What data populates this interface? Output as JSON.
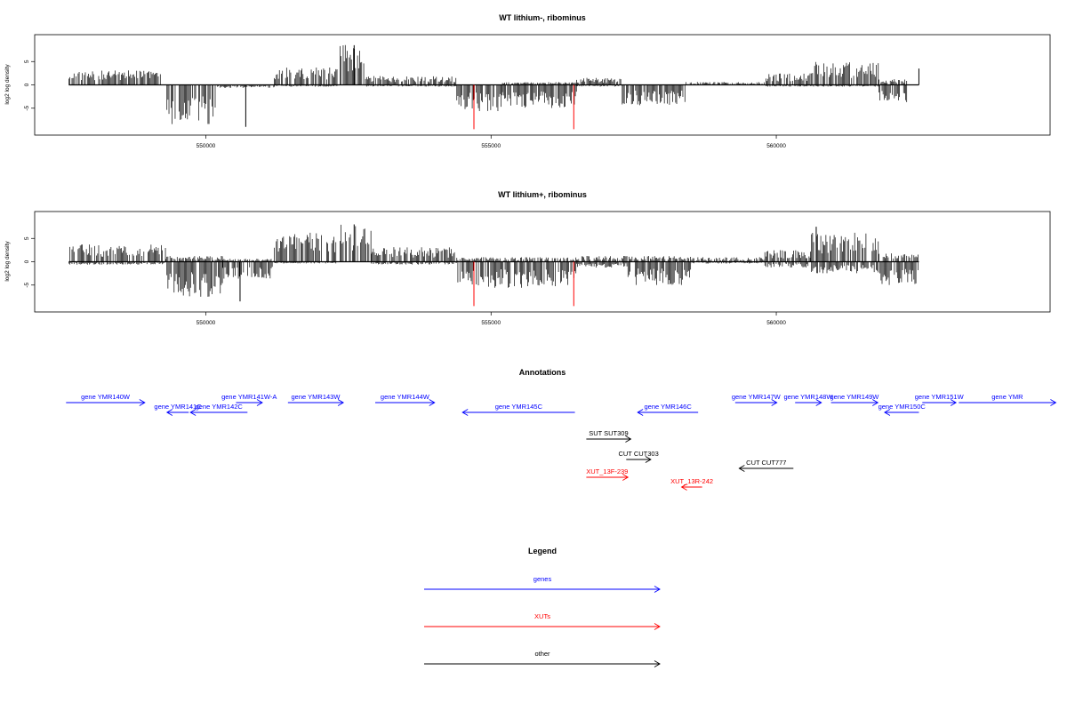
{
  "colors": {
    "genes": "#0000ff",
    "XUTs": "#ff0000",
    "other": "#000000",
    "signal": "#000000",
    "highlight": "#ff0000"
  },
  "chart_data": [
    {
      "type": "bar",
      "title": "WT lithium-, ribominus",
      "ylabel": "log2 log density",
      "xlim": [
        547000,
        564800
      ],
      "ylim": [
        -10,
        10
      ],
      "xticks": [
        550000,
        555000,
        560000
      ],
      "xtick_labels": [
        "550000",
        "555000",
        "560000"
      ],
      "yticks": [
        -5,
        0,
        5
      ],
      "ytick_labels": [
        "-5",
        "0",
        "5"
      ],
      "signal_range": [
        547600,
        562500
      ],
      "segments": [
        {
          "from": 547600,
          "to": 548500,
          "plus": 2.5,
          "minus": 0
        },
        {
          "from": 548500,
          "to": 549300,
          "plus": 2.5,
          "minus": 0
        },
        {
          "from": 549300,
          "to": 550200,
          "plus": 0,
          "minus": -7
        },
        {
          "from": 550200,
          "to": 551200,
          "plus": 0,
          "minus": -0.5
        },
        {
          "from": 551200,
          "to": 552300,
          "plus": 3,
          "minus": -0.3
        },
        {
          "from": 552300,
          "to": 552800,
          "plus": 7,
          "minus": 0
        },
        {
          "from": 552800,
          "to": 554400,
          "plus": 1.5,
          "minus": -0.3
        },
        {
          "from": 554400,
          "to": 555200,
          "plus": 0,
          "minus": -4.5
        },
        {
          "from": 555200,
          "to": 556500,
          "plus": 0.5,
          "minus": -4
        },
        {
          "from": 556500,
          "to": 557300,
          "plus": 1.2,
          "minus": -0.3
        },
        {
          "from": 557300,
          "to": 558400,
          "plus": 0,
          "minus": -3.5
        },
        {
          "from": 558400,
          "to": 559800,
          "plus": 0.5,
          "minus": 0
        },
        {
          "from": 559800,
          "to": 560600,
          "plus": 2,
          "minus": -0.3
        },
        {
          "from": 560600,
          "to": 561800,
          "plus": 4,
          "minus": -0.3
        },
        {
          "from": 561800,
          "to": 562300,
          "plus": 1,
          "minus": -3
        }
      ],
      "spikes": [
        {
          "x": 554700,
          "y": -9.5,
          "color": "highlight"
        },
        {
          "x": 556450,
          "y": -9.5,
          "color": "highlight"
        },
        {
          "x": 550700,
          "y": -9.0,
          "color": "signal"
        },
        {
          "x": 552600,
          "y": 8.5,
          "color": "signal"
        },
        {
          "x": 562500,
          "y": 3.5,
          "color": "signal"
        }
      ]
    },
    {
      "type": "bar",
      "title": "WT lithium+, ribominus",
      "ylabel": "log2 log density",
      "xlim": [
        547000,
        564800
      ],
      "ylim": [
        -10,
        10
      ],
      "xticks": [
        550000,
        555000,
        560000
      ],
      "xtick_labels": [
        "550000",
        "555000",
        "560000"
      ],
      "yticks": [
        -5,
        0,
        5
      ],
      "ytick_labels": [
        "-5",
        "0",
        "5"
      ],
      "signal_range": [
        547600,
        562500
      ],
      "segments": [
        {
          "from": 547600,
          "to": 549300,
          "plus": 3,
          "minus": -0.5
        },
        {
          "from": 549300,
          "to": 550300,
          "plus": 1,
          "minus": -6
        },
        {
          "from": 550300,
          "to": 551200,
          "plus": 0.5,
          "minus": -3
        },
        {
          "from": 551200,
          "to": 552300,
          "plus": 5,
          "minus": -0.3
        },
        {
          "from": 552300,
          "to": 552900,
          "plus": 6.5,
          "minus": 0
        },
        {
          "from": 552900,
          "to": 554400,
          "plus": 2.5,
          "minus": -0.5
        },
        {
          "from": 554400,
          "to": 556500,
          "plus": 0.8,
          "minus": -4.5
        },
        {
          "from": 556500,
          "to": 557400,
          "plus": 1,
          "minus": -1
        },
        {
          "from": 557400,
          "to": 558500,
          "plus": 1,
          "minus": -4
        },
        {
          "from": 558500,
          "to": 559800,
          "plus": 0.8,
          "minus": -0.3
        },
        {
          "from": 559800,
          "to": 560600,
          "plus": 2,
          "minus": -1
        },
        {
          "from": 560600,
          "to": 561800,
          "plus": 5,
          "minus": -2
        },
        {
          "from": 561800,
          "to": 562500,
          "plus": 1.5,
          "minus": -4
        }
      ],
      "spikes": [
        {
          "x": 554700,
          "y": -9.5,
          "color": "highlight"
        },
        {
          "x": 556450,
          "y": -9.5,
          "color": "highlight"
        },
        {
          "x": 550600,
          "y": -8.5,
          "color": "signal"
        },
        {
          "x": 552600,
          "y": 8.0,
          "color": "signal"
        },
        {
          "x": 560700,
          "y": 7.5,
          "color": "signal"
        }
      ]
    }
  ],
  "annotations": {
    "title": "Annotations",
    "features": [
      {
        "label": "gene YMR140W",
        "start": 547550,
        "end": 548930,
        "row": 0,
        "strand": "+",
        "type": "genes"
      },
      {
        "label": "gene YMR141C",
        "start": 549320,
        "end": 549700,
        "row": 1,
        "strand": "-",
        "type": "genes"
      },
      {
        "label": "gene YMR141W-A",
        "start": 550530,
        "end": 550990,
        "row": 0,
        "strand": "+",
        "type": "genes"
      },
      {
        "label": "gene YMR142C",
        "start": 549730,
        "end": 550730,
        "row": 1,
        "strand": "-",
        "type": "genes"
      },
      {
        "label": "gene YMR143W",
        "start": 551440,
        "end": 552410,
        "row": 0,
        "strand": "+",
        "type": "genes"
      },
      {
        "label": "gene YMR144W",
        "start": 552970,
        "end": 554010,
        "row": 0,
        "strand": "+",
        "type": "genes"
      },
      {
        "label": "gene YMR145C",
        "start": 554500,
        "end": 556470,
        "row": 1,
        "strand": "-",
        "type": "genes"
      },
      {
        "label": "gene YMR146C",
        "start": 557570,
        "end": 558630,
        "row": 1,
        "strand": "-",
        "type": "genes"
      },
      {
        "label": "gene YMR147W",
        "start": 559280,
        "end": 560010,
        "row": 0,
        "strand": "+",
        "type": "genes"
      },
      {
        "label": "gene YMR148W",
        "start": 560330,
        "end": 560790,
        "row": 0,
        "strand": "+",
        "type": "genes"
      },
      {
        "label": "gene YMR149W",
        "start": 560960,
        "end": 561780,
        "row": 0,
        "strand": "+",
        "type": "genes"
      },
      {
        "label": "gene YMR150C",
        "start": 561900,
        "end": 562500,
        "row": 1,
        "strand": "-",
        "type": "genes"
      },
      {
        "label": "gene YMR151W",
        "start": 562560,
        "end": 563150,
        "row": 0,
        "strand": "+",
        "type": "genes"
      },
      {
        "label": "gene YMR",
        "start": 563200,
        "end": 564900,
        "row": 0,
        "strand": "+",
        "type": "genes"
      },
      {
        "label": "SUT SUT309",
        "start": 556670,
        "end": 557450,
        "row": 2,
        "strand": "+",
        "type": "other"
      },
      {
        "label": "CUT CUT303",
        "start": 557370,
        "end": 557800,
        "row": 3,
        "strand": "+",
        "type": "other"
      },
      {
        "label": "CUT CUT777",
        "start": 559350,
        "end": 560300,
        "row": 4,
        "strand": "-",
        "type": "other"
      },
      {
        "label": "XUT_13F-239",
        "start": 556670,
        "end": 557400,
        "row": 5,
        "strand": "+",
        "type": "XUTs"
      },
      {
        "label": "XUT_13R-242",
        "start": 558340,
        "end": 558700,
        "row": 6,
        "strand": "-",
        "type": "XUTs"
      }
    ]
  },
  "legend": {
    "title": "Legend",
    "items": [
      {
        "label": "genes",
        "type": "genes"
      },
      {
        "label": "XUTs",
        "type": "XUTs"
      },
      {
        "label": "other",
        "type": "other"
      }
    ]
  }
}
